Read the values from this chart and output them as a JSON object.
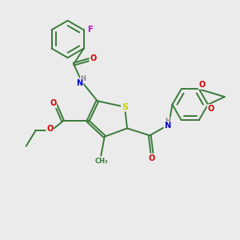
{
  "background_color": "#ebebeb",
  "fig_size": [
    3.0,
    3.0
  ],
  "dpi": 100,
  "atom_colors": {
    "S": "#cccc00",
    "N": "#0000cc",
    "O": "#cc0000",
    "F": "#cc00cc",
    "C": "#3a7a3a",
    "H": "#808080"
  },
  "bond_color": "#3a7a3a",
  "bond_width": 1.4,
  "font_size": 7
}
